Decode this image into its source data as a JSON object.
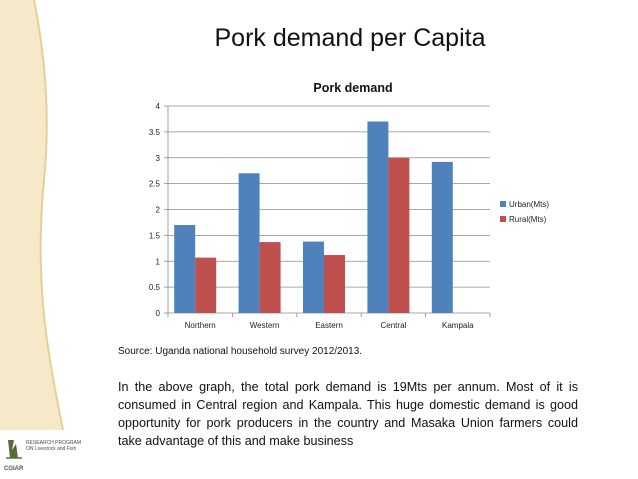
{
  "slide": {
    "title": "Pork demand per Capita",
    "source": "Source: Uganda national household survey 2012/2013.",
    "body": "In the above graph, the total pork demand is 19Mts per annum. Most of it is consumed in Central region and Kampala. This huge domestic demand is good opportunity for pork producers in the country and Masaka Union farmers could take advantage of this and make business"
  },
  "logo": {
    "text": "RESEARCH PROGRAM ON Livestock and Fish",
    "abbr": "CGIAR"
  },
  "colors": {
    "band": "#f5e9c9",
    "band_edge": "#e6d09a",
    "urban": "#4f81bd",
    "rural": "#c0504d",
    "grid": "#8c8c8c"
  },
  "chart_data": {
    "type": "bar",
    "title": "Pork demand",
    "categories": [
      "Northern",
      "Western",
      "Eastern",
      "Central",
      "Kampala"
    ],
    "series": [
      {
        "name": "Urban(Mts)",
        "values": [
          1.7,
          2.7,
          1.38,
          3.7,
          2.92
        ]
      },
      {
        "name": "Rural(Mts)",
        "values": [
          1.07,
          1.37,
          1.12,
          3.0,
          null
        ]
      }
    ],
    "yticks": [
      "0",
      "0.5",
      "1",
      "1.5",
      "2",
      "2.5",
      "3",
      "3.5",
      "4"
    ],
    "ylim": [
      0,
      4
    ],
    "grid": true,
    "legend": "right"
  }
}
